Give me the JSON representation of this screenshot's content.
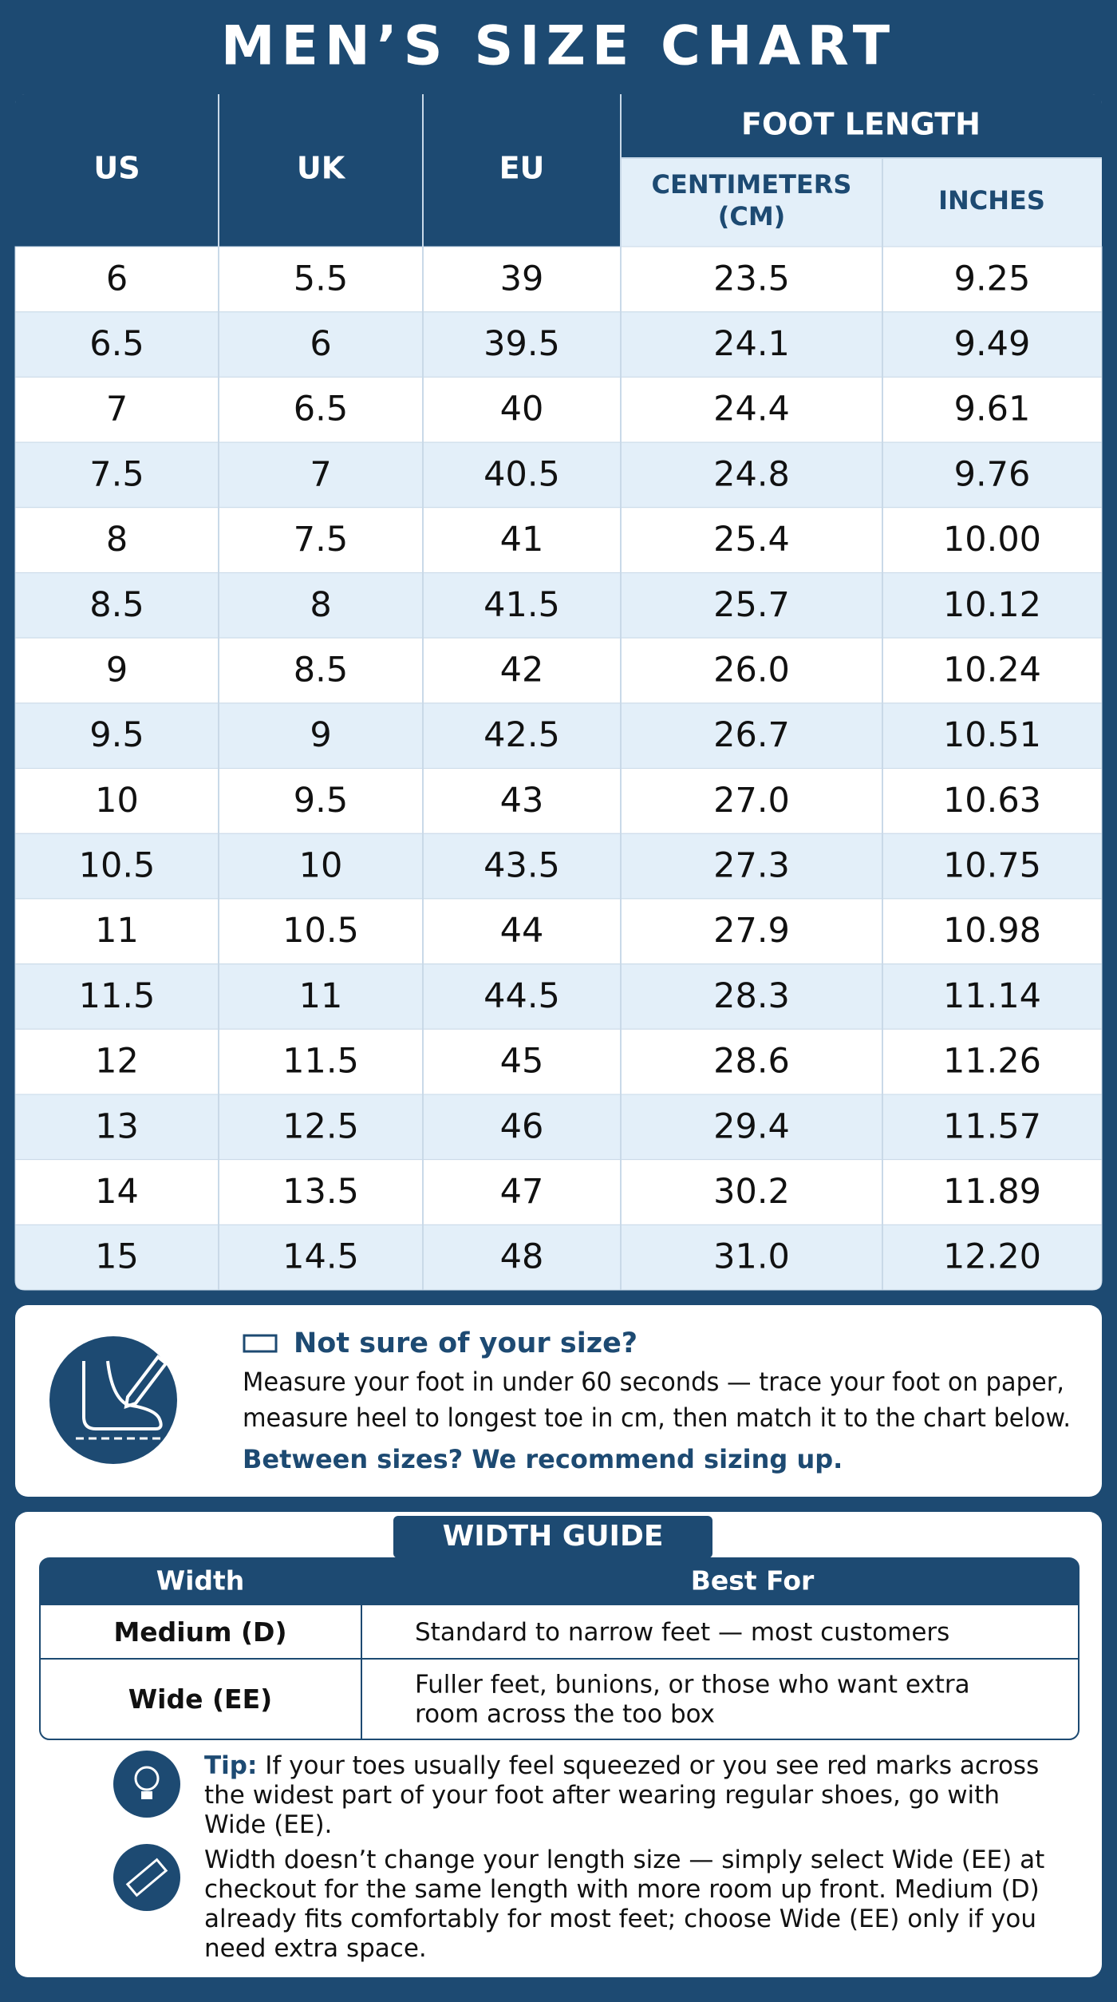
{
  "title": "MEN’S SIZE CHART",
  "table": {
    "header": {
      "us": "US",
      "uk": "UK",
      "eu": "EU",
      "foot_length": "FOOT LENGTH",
      "cm": [
        "CENTIMETERS",
        "(CM)"
      ],
      "inches": "INCHES"
    },
    "rows": [
      [
        "6",
        "5.5",
        "39",
        "23.5",
        "9.25"
      ],
      [
        "6.5",
        "6",
        "39.5",
        "24.1",
        "9.49"
      ],
      [
        "7",
        "6.5",
        "40",
        "24.4",
        "9.61"
      ],
      [
        "7.5",
        "7",
        "40.5",
        "24.8",
        "9.76"
      ],
      [
        "8",
        "7.5",
        "41",
        "25.4",
        "10.00"
      ],
      [
        "8.5",
        "8",
        "41.5",
        "25.7",
        "10.12"
      ],
      [
        "9",
        "8.5",
        "42",
        "26.0",
        "10.24"
      ],
      [
        "9.5",
        "9",
        "42.5",
        "26.7",
        "10.51"
      ],
      [
        "10",
        "9.5",
        "43",
        "27.0",
        "10.63"
      ],
      [
        "10.5",
        "10",
        "43.5",
        "27.3",
        "10.75"
      ],
      [
        "11",
        "10.5",
        "44",
        "27.9",
        "10.98"
      ],
      [
        "11.5",
        "11",
        "44.5",
        "28.3",
        "11.14"
      ],
      [
        "12",
        "11.5",
        "45",
        "28.6",
        "11.26"
      ],
      [
        "13",
        "12.5",
        "46",
        "29.4",
        "11.57"
      ],
      [
        "14",
        "13.5",
        "47",
        "30.2",
        "11.89"
      ],
      [
        "15",
        "14.5",
        "48",
        "31.0",
        "12.20"
      ]
    ]
  },
  "info": {
    "title": "Not sure of your size?",
    "lines": [
      "Measure your foot in under 60 seconds — trace your foot on paper,",
      "measure heel to longest toe in cm, then match it to the chart below."
    ],
    "recommendation": "Between sizes? We recommend sizing up."
  },
  "width_guide": {
    "title": "WIDTH GUIDE",
    "header": [
      "Width",
      "Best For"
    ],
    "rows": [
      {
        "width": "Medium (D)",
        "best_for": [
          "Standard to narrow feet — most customers"
        ]
      },
      {
        "width": "Wide (EE)",
        "best_for": [
          "Fuller feet, bunions, or those who want extra",
          "room across the too box"
        ]
      }
    ]
  },
  "tips": [
    {
      "label": "Tip:",
      "lines": [
        " If your toes usually feel squeezed or you see red marks across",
        "the widest part of your foot after wearing regular shoes, go with",
        "Wide (EE)."
      ]
    },
    {
      "lines": [
        "Width doesn’t change your length size — simply select Wide (EE) at",
        "checkout for the same length with more room up front. Medium (D)",
        "already fits comfortably for most feet; choose Wide (EE) only if you",
        "need extra space."
      ]
    }
  ]
}
